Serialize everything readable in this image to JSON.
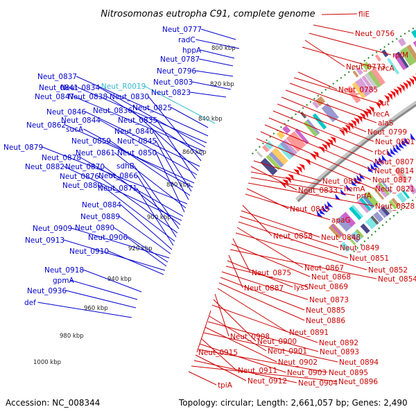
{
  "title": "Nitrosomonas eutropha C91, complete genome",
  "footer": {
    "accession": "Accession: NC_008344",
    "summary": "Topology: circular; Length: 2,661,057 bp; Genes: 2,490"
  },
  "colors": {
    "forward_label": "#0000cc",
    "reverse_label": "#cc0000",
    "rna_label": "#33bbcc",
    "backbone": "#8a8a8a",
    "tick_dots": "#2e8b2e"
  },
  "ticks": [
    "800 kbp",
    "820 kbp",
    "840 kbp",
    "860 kbp",
    "880 kbp",
    "900 kbp",
    "920 kbp",
    "940 kbp",
    "960 kbp",
    "980 kbp",
    "1000 kbp"
  ],
  "left_labels": [
    "Neut_0777",
    "radC",
    "hppA",
    "Neut_0787",
    "Neut_0796",
    "Neut_0803",
    "Neut_0823",
    "Neut_0837",
    "Neut_0841",
    "Neut_0834",
    "Neut_0847",
    "Neut_0838",
    "Neut_0830",
    "Neut_0825",
    "Neut_0846",
    "Neut_0836",
    "Neut_0844",
    "Neut_0835",
    "Neut_0862",
    "sucA",
    "Neut_0840",
    "Neut_0859",
    "Neut_0845",
    "Neut_0879",
    "Neut_0861",
    "Neut_0850",
    "Neut_0878",
    "Neut_0882",
    "Neut_0870",
    "sdhB",
    "Neut_0876",
    "Neut_0866",
    "Neut_0880",
    "Neut_0871",
    "Neut_0884",
    "Neut_0889",
    "Neut_0909",
    "Neut_0890",
    "Neut_0906",
    "Neut_0913",
    "Neut_0910",
    "Neut_0918",
    "gpmA",
    "Neut_0936",
    "def"
  ],
  "rna_labels": [
    "Neut_R0019"
  ],
  "right_labels": [
    "fliE",
    "Neut_0756",
    "rplM",
    "Neut_0773",
    "hrcA",
    "Neut_0785",
    "dut",
    "recA",
    "alaS",
    "Neut_0799",
    "Neut_0801",
    "rbcL",
    "Neut_0807",
    "Neut_0814",
    "Neut_0817",
    "Neut_0821",
    "Neut_0832",
    "Neut_0833",
    "hemA",
    "prfA",
    "Neut_0828",
    "Neut_0843",
    "apaG",
    "Neut_0858",
    "Neut_0848",
    "Neut_0849",
    "Neut_0851",
    "Neut_0867",
    "Neut_0852",
    "Neut_0875",
    "Neut_0868",
    "Neut_0854",
    "Neut_0887",
    "lysS",
    "Neut_0869",
    "Neut_0873",
    "Neut_0885",
    "Neut_0886",
    "Neut_0891",
    "Neut_0908",
    "Neut_0900",
    "Neut_0892",
    "Neut_0915",
    "Neut_0901",
    "Neut_0893",
    "Neut_0902",
    "Neut_0894",
    "Neut_0911",
    "Neut_0903",
    "Neut_0895",
    "Neut_0912",
    "Neut_0904",
    "Neut_0896",
    "tpiA"
  ]
}
